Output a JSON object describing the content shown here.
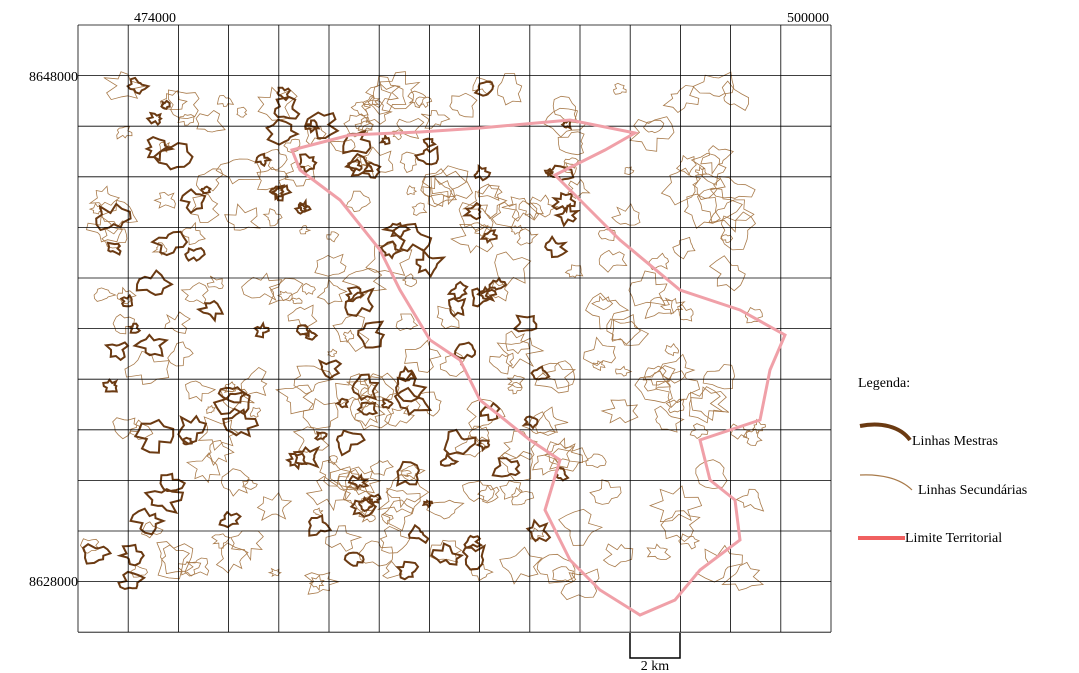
{
  "map": {
    "x_labels": [
      "474000",
      "500000"
    ],
    "y_labels": [
      "8648000",
      "8628000"
    ],
    "legend": {
      "title": "Legenda:",
      "items": [
        "Linhas Mestras",
        "Linhas Secundárias",
        "Limite Territorial"
      ]
    },
    "scale_bar": "2 km"
  }
}
